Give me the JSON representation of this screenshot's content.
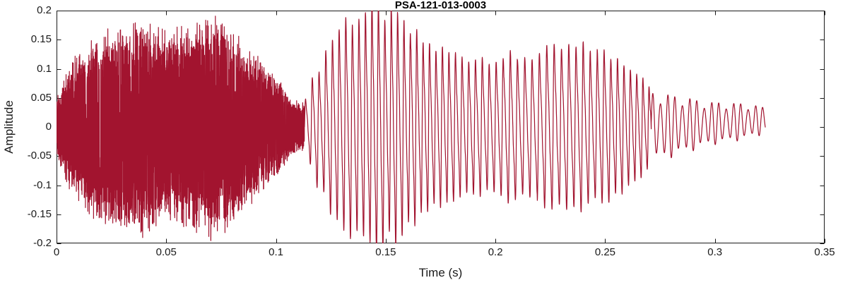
{
  "chart_data": {
    "type": "line",
    "title": "PSA-121-013-0003",
    "xlabel": "Time (s)",
    "ylabel": "Amplitude",
    "xlim": [
      0,
      0.35
    ],
    "ylim": [
      -0.2,
      0.2
    ],
    "xticks": [
      0,
      0.05,
      0.1,
      0.15,
      0.2,
      0.25,
      0.3,
      0.35
    ],
    "xtick_labels": [
      "0",
      "0.05",
      "0.1",
      "0.15",
      "0.2",
      "0.25",
      "0.3",
      "0.35"
    ],
    "yticks": [
      -0.2,
      -0.15,
      -0.1,
      -0.05,
      0,
      0.05,
      0.1,
      0.15,
      0.2
    ],
    "ytick_labels": [
      "-0.2",
      "-0.15",
      "-0.1",
      "-0.05",
      "0",
      "0.05",
      "0.1",
      "0.15",
      "0.2"
    ],
    "line_color": "#A2142F",
    "axis_color": "#1a1a1a",
    "grid": false,
    "legend": null,
    "description": "Speech-like waveform: broadband noise burst 0-0.113 s, quasi-periodic voiced segment 0.113-0.271 s, decaying tone tail 0.271-0.323 s",
    "segments": [
      {
        "kind": "noise",
        "t0": 0.0,
        "t1": 0.113,
        "freq": 900,
        "envelope": [
          [
            0,
            0.05
          ],
          [
            0.005,
            0.1
          ],
          [
            0.012,
            0.13
          ],
          [
            0.02,
            0.16
          ],
          [
            0.03,
            0.17
          ],
          [
            0.04,
            0.18
          ],
          [
            0.05,
            0.155
          ],
          [
            0.06,
            0.17
          ],
          [
            0.07,
            0.185
          ],
          [
            0.078,
            0.17
          ],
          [
            0.085,
            0.14
          ],
          [
            0.09,
            0.12
          ],
          [
            0.095,
            0.105
          ],
          [
            0.1,
            0.085
          ],
          [
            0.105,
            0.055
          ],
          [
            0.111,
            0.04
          ],
          [
            0.113,
            0.045
          ]
        ]
      },
      {
        "kind": "periodic",
        "t0": 0.113,
        "t1": 0.271,
        "freq": 330,
        "envelope": [
          [
            0.113,
            0.05
          ],
          [
            0.118,
            0.09
          ],
          [
            0.125,
            0.15
          ],
          [
            0.132,
            0.185
          ],
          [
            0.14,
            0.195
          ],
          [
            0.148,
            0.2
          ],
          [
            0.155,
            0.185
          ],
          [
            0.162,
            0.16
          ],
          [
            0.17,
            0.14
          ],
          [
            0.18,
            0.125
          ],
          [
            0.19,
            0.12
          ],
          [
            0.2,
            0.12
          ],
          [
            0.21,
            0.12
          ],
          [
            0.22,
            0.125
          ],
          [
            0.23,
            0.135
          ],
          [
            0.24,
            0.135
          ],
          [
            0.25,
            0.125
          ],
          [
            0.258,
            0.115
          ],
          [
            0.264,
            0.1
          ],
          [
            0.268,
            0.085
          ],
          [
            0.271,
            0.07
          ]
        ]
      },
      {
        "kind": "tone",
        "t0": 0.271,
        "t1": 0.323,
        "freq": 300,
        "envelope": [
          [
            0.271,
            0.062
          ],
          [
            0.278,
            0.055
          ],
          [
            0.285,
            0.05
          ],
          [
            0.292,
            0.042
          ],
          [
            0.3,
            0.036
          ],
          [
            0.307,
            0.034
          ],
          [
            0.314,
            0.03
          ],
          [
            0.32,
            0.026
          ],
          [
            0.323,
            0.02
          ]
        ]
      }
    ]
  }
}
